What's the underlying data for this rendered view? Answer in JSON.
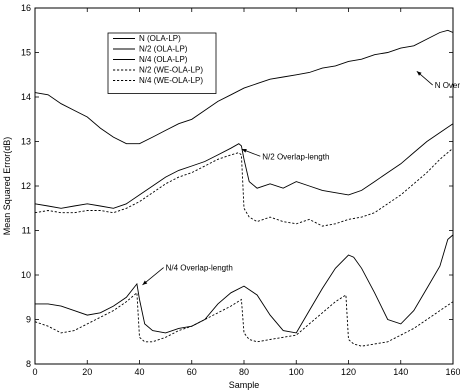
{
  "chart_data": {
    "type": "line",
    "xlabel": "Sample",
    "ylabel": "Mean Squared Error(dB)",
    "xlim": [
      0,
      160
    ],
    "ylim": [
      8,
      16
    ],
    "xticks": [
      0,
      20,
      40,
      60,
      80,
      100,
      120,
      140,
      160
    ],
    "yticks": [
      8,
      9,
      10,
      11,
      12,
      13,
      14,
      15,
      16
    ],
    "grid": false,
    "legend_position": "top-left",
    "series": [
      {
        "name": "N (OLA-LP)",
        "style": "solid",
        "x": [
          0,
          5,
          10,
          15,
          20,
          25,
          30,
          35,
          40,
          45,
          50,
          55,
          60,
          65,
          70,
          75,
          80,
          85,
          90,
          95,
          100,
          105,
          110,
          115,
          120,
          125,
          130,
          135,
          140,
          145,
          150,
          155,
          158,
          160
        ],
        "y": [
          14.1,
          14.05,
          13.85,
          13.7,
          13.55,
          13.3,
          13.1,
          12.95,
          12.95,
          13.1,
          13.25,
          13.4,
          13.5,
          13.7,
          13.9,
          14.05,
          14.2,
          14.3,
          14.4,
          14.45,
          14.5,
          14.55,
          14.65,
          14.7,
          14.8,
          14.85,
          14.95,
          15.0,
          15.1,
          15.15,
          15.3,
          15.45,
          15.5,
          15.45
        ]
      },
      {
        "name": "N/2 (OLA-LP)",
        "style": "solid",
        "x": [
          0,
          5,
          10,
          15,
          20,
          25,
          30,
          35,
          40,
          45,
          50,
          55,
          60,
          65,
          70,
          75,
          78,
          79,
          80,
          82,
          85,
          90,
          95,
          100,
          105,
          110,
          115,
          120,
          125,
          130,
          135,
          140,
          145,
          150,
          155,
          160
        ],
        "y": [
          11.6,
          11.55,
          11.5,
          11.55,
          11.6,
          11.55,
          11.5,
          11.6,
          11.8,
          12.0,
          12.2,
          12.35,
          12.45,
          12.55,
          12.7,
          12.85,
          12.95,
          12.9,
          12.6,
          12.1,
          11.95,
          12.05,
          11.95,
          12.1,
          12.0,
          11.9,
          11.85,
          11.8,
          11.9,
          12.1,
          12.3,
          12.5,
          12.75,
          13.0,
          13.2,
          13.4
        ]
      },
      {
        "name": "N/4 (OLA-LP)",
        "style": "solid",
        "x": [
          0,
          5,
          10,
          15,
          20,
          25,
          30,
          35,
          39,
          40,
          42,
          45,
          50,
          55,
          60,
          65,
          70,
          75,
          80,
          85,
          90,
          95,
          100,
          105,
          110,
          115,
          120,
          122,
          125,
          130,
          135,
          140,
          145,
          150,
          155,
          158,
          160
        ],
        "y": [
          9.35,
          9.35,
          9.3,
          9.2,
          9.1,
          9.15,
          9.3,
          9.5,
          9.8,
          9.45,
          8.9,
          8.75,
          8.7,
          8.8,
          8.85,
          9.0,
          9.35,
          9.6,
          9.75,
          9.55,
          9.1,
          8.75,
          8.7,
          9.2,
          9.7,
          10.15,
          10.45,
          10.4,
          10.15,
          9.6,
          9.0,
          8.9,
          9.2,
          9.7,
          10.2,
          10.8,
          10.9
        ]
      },
      {
        "name": "N/2 (WE-OLA-LP)",
        "style": "dotted",
        "x": [
          0,
          5,
          10,
          15,
          20,
          25,
          30,
          35,
          40,
          45,
          50,
          55,
          60,
          65,
          70,
          75,
          78,
          79,
          80,
          82,
          85,
          90,
          95,
          100,
          105,
          110,
          115,
          120,
          125,
          130,
          135,
          140,
          145,
          150,
          155,
          160
        ],
        "y": [
          11.4,
          11.45,
          11.4,
          11.4,
          11.45,
          11.45,
          11.4,
          11.5,
          11.65,
          11.85,
          12.05,
          12.2,
          12.3,
          12.45,
          12.6,
          12.7,
          12.75,
          12.7,
          11.5,
          11.3,
          11.2,
          11.3,
          11.2,
          11.15,
          11.25,
          11.1,
          11.15,
          11.25,
          11.3,
          11.4,
          11.6,
          11.8,
          12.05,
          12.3,
          12.6,
          12.85
        ]
      },
      {
        "name": "N/4 (WE-OLA-LP)",
        "style": "dotted",
        "x": [
          0,
          5,
          10,
          15,
          20,
          25,
          30,
          35,
          39,
          40,
          42,
          45,
          50,
          55,
          60,
          65,
          70,
          75,
          79,
          80,
          82,
          85,
          90,
          95,
          100,
          105,
          110,
          115,
          119,
          120,
          122,
          125,
          130,
          135,
          140,
          145,
          150,
          155,
          160
        ],
        "y": [
          8.95,
          8.85,
          8.7,
          8.75,
          8.9,
          9.05,
          9.2,
          9.4,
          9.6,
          8.6,
          8.5,
          8.5,
          8.6,
          8.75,
          8.85,
          9.0,
          9.15,
          9.3,
          9.45,
          8.7,
          8.55,
          8.5,
          8.55,
          8.6,
          8.65,
          8.9,
          9.15,
          9.4,
          9.55,
          8.55,
          8.45,
          8.4,
          8.45,
          8.5,
          8.65,
          8.8,
          9.0,
          9.2,
          9.4
        ]
      }
    ],
    "annotations": [
      {
        "text": "N Overlap-length",
        "target": [
          145,
          14.6
        ],
        "label_at": [
          153,
          14.2
        ]
      },
      {
        "text": "N/2 Overlap-length",
        "target": [
          78,
          12.85
        ],
        "label_at": [
          87,
          12.6
        ]
      },
      {
        "text": "N/4 Overlap-length",
        "target": [
          40,
          9.8
        ],
        "label_at": [
          50,
          10.1
        ]
      }
    ]
  }
}
